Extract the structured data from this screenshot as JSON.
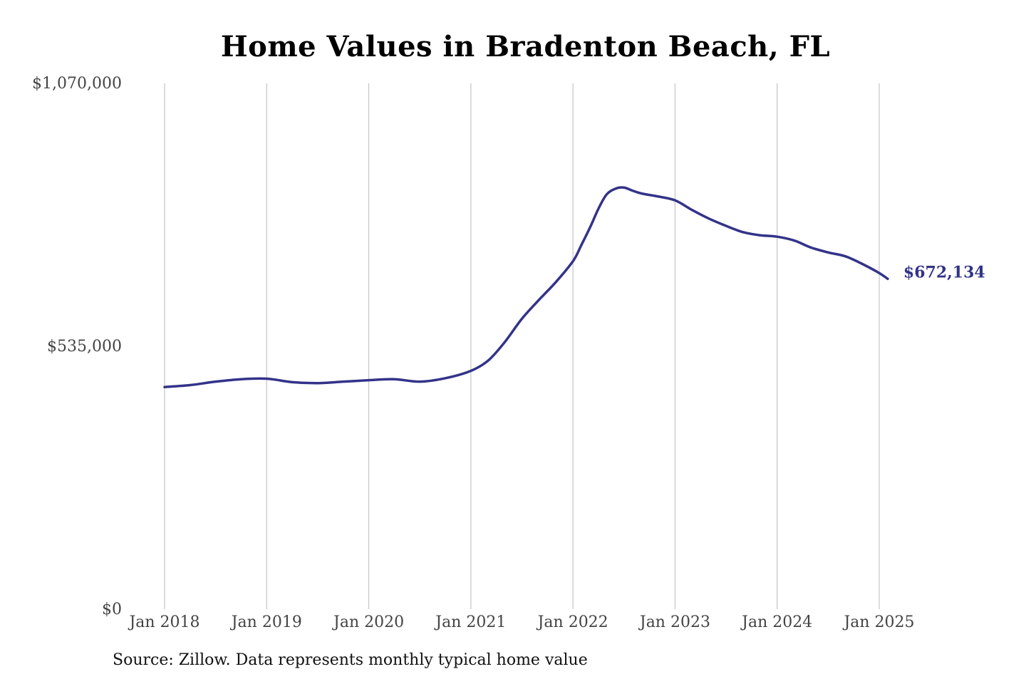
{
  "chart_data": {
    "type": "line",
    "title": "Home Values in Bradenton Beach, FL",
    "xlabel": "",
    "ylabel": "",
    "ylim": [
      0,
      1070000
    ],
    "yticks": [
      {
        "value": 0,
        "label": "$0"
      },
      {
        "value": 535000,
        "label": "$535,000"
      },
      {
        "value": 1070000,
        "label": "$1,070,000"
      }
    ],
    "xlim": [
      2018.0,
      2025.0833
    ],
    "xticks": [
      {
        "value": 2018,
        "label": "Jan 2018"
      },
      {
        "value": 2019,
        "label": "Jan 2019"
      },
      {
        "value": 2020,
        "label": "Jan 2020"
      },
      {
        "value": 2021,
        "label": "Jan 2021"
      },
      {
        "value": 2022,
        "label": "Jan 2022"
      },
      {
        "value": 2023,
        "label": "Jan 2023"
      },
      {
        "value": 2024,
        "label": "Jan 2024"
      },
      {
        "value": 2025,
        "label": "Jan 2025"
      }
    ],
    "grid": "vertical",
    "series": [
      {
        "name": "Typical home value",
        "color": "#33338a",
        "x": [
          2018.0,
          2018.25,
          2018.5,
          2018.75,
          2019.0,
          2019.25,
          2019.5,
          2019.75,
          2020.0,
          2020.25,
          2020.5,
          2020.75,
          2021.0,
          2021.17,
          2021.33,
          2021.5,
          2021.67,
          2021.83,
          2022.0,
          2022.08,
          2022.17,
          2022.25,
          2022.33,
          2022.42,
          2022.5,
          2022.58,
          2022.67,
          2022.83,
          2023.0,
          2023.17,
          2023.33,
          2023.5,
          2023.67,
          2023.83,
          2024.0,
          2024.17,
          2024.33,
          2024.5,
          2024.67,
          2024.83,
          2025.0,
          2025.0833
        ],
        "values": [
          452000,
          456000,
          463000,
          468000,
          469000,
          462000,
          460000,
          463000,
          466000,
          468000,
          463000,
          470000,
          485000,
          506000,
          543000,
          591000,
          630000,
          665000,
          708000,
          740000,
          778000,
          815000,
          844000,
          856000,
          858000,
          852000,
          846000,
          840000,
          832000,
          812000,
          795000,
          780000,
          767000,
          761000,
          758000,
          750000,
          736000,
          726000,
          718000,
          703000,
          684000,
          672134
        ]
      }
    ],
    "end_label": "$672,134",
    "source": "Source: Zillow. Data represents monthly typical home value"
  }
}
